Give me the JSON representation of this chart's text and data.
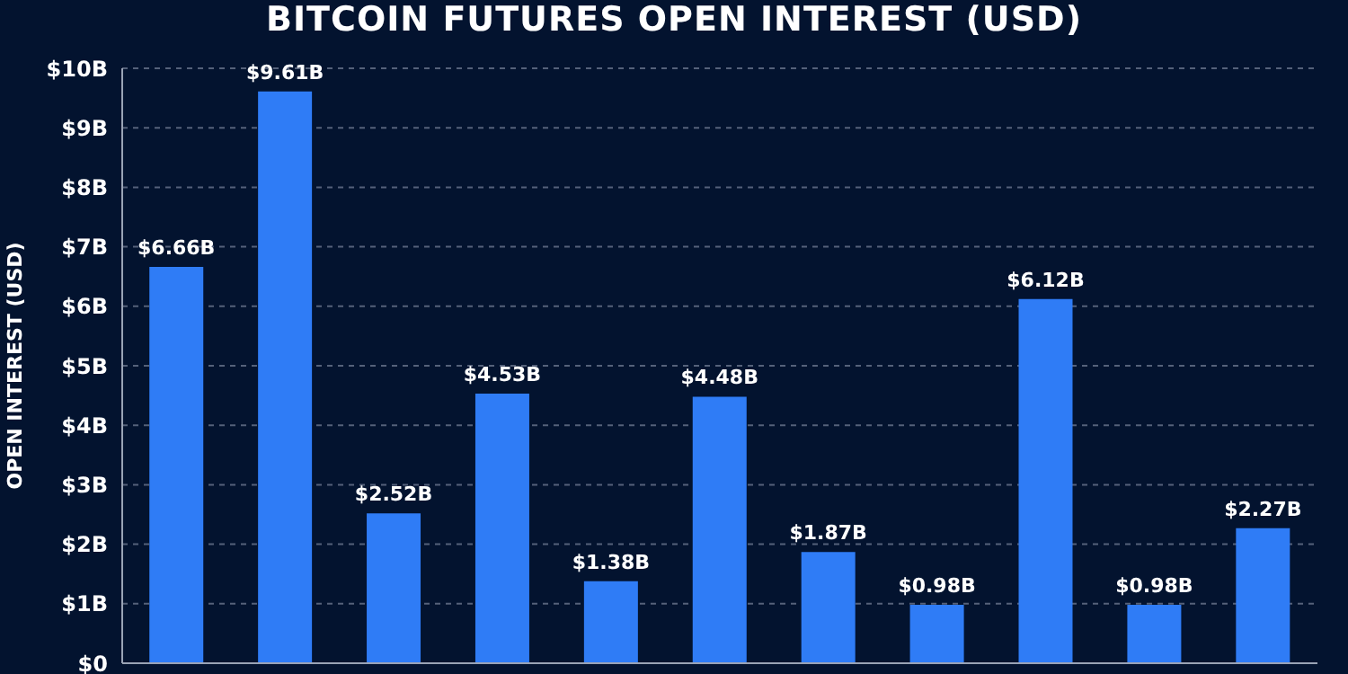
{
  "chart_data": {
    "type": "bar",
    "title": "BITCOIN FUTURES OPEN INTEREST  (USD)",
    "ylabel": "OPEN INTEREST (USD)",
    "categories": [
      null,
      null,
      null,
      null,
      null,
      null,
      null,
      null,
      null,
      null,
      null
    ],
    "values": [
      6.66,
      9.61,
      2.52,
      4.53,
      1.38,
      4.48,
      1.87,
      0.98,
      6.12,
      0.98,
      2.27
    ],
    "value_labels": [
      "$6.66B",
      "$9.61B",
      "$2.52B",
      "$4.53B",
      "$1.38B",
      "$4.48B",
      "$1.87B",
      "$0.98B",
      "$6.12B",
      "$0.98B",
      "$2.27B"
    ],
    "color": "#2f7cf6",
    "ylim": [
      0,
      10
    ],
    "yticks": [
      {
        "value": 0,
        "label": "$0"
      },
      {
        "value": 1,
        "label": "$1B"
      },
      {
        "value": 2,
        "label": "$2B"
      },
      {
        "value": 3,
        "label": "$3B"
      },
      {
        "value": 4,
        "label": "$4B"
      },
      {
        "value": 5,
        "label": "$5B"
      },
      {
        "value": 6,
        "label": "$6B"
      },
      {
        "value": 7,
        "label": "$7B"
      },
      {
        "value": 8,
        "label": "$8B"
      },
      {
        "value": 9,
        "label": "$9B"
      },
      {
        "value": 10,
        "label": "$10B"
      }
    ],
    "grid": "y"
  }
}
